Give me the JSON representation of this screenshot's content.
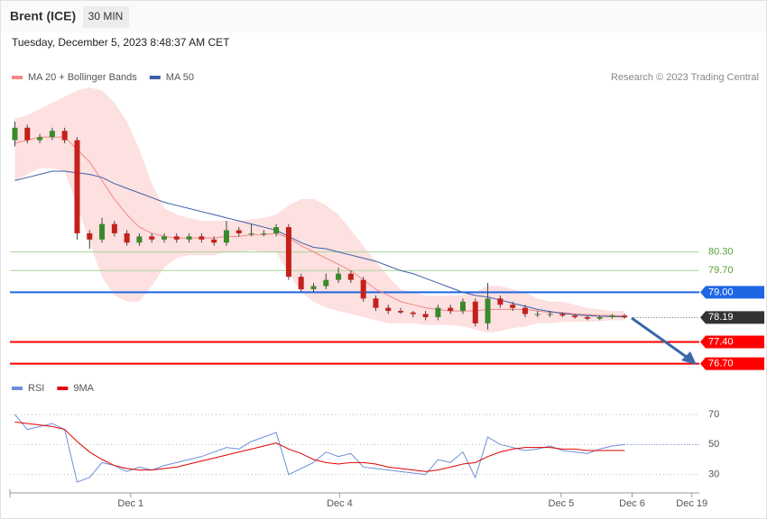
{
  "header": {
    "symbol": "Brent (ICE)",
    "interval": "30 MIN",
    "timestamp": "Tuesday, December 5, 2023 8:48:37 AM CET",
    "credit": "Research © 2023 Trading Central"
  },
  "chart_data": [
    {
      "type": "candlestick",
      "up_color": "#3a8a2c",
      "down_color": "#c3211a",
      "open": [
        83.9,
        84.3,
        83.9,
        84.0,
        84.2,
        83.9,
        80.9,
        80.7,
        81.2,
        80.9,
        80.6,
        80.8,
        80.7,
        80.8,
        80.7,
        80.8,
        80.7,
        80.6,
        81.0,
        80.9,
        80.9,
        80.9,
        81.1,
        79.5,
        79.1,
        79.2,
        79.4,
        79.6,
        79.4,
        78.8,
        78.5,
        78.4,
        78.35,
        78.3,
        78.2,
        78.5,
        78.4,
        78.7,
        78.0,
        78.8,
        78.6,
        78.5,
        78.3,
        78.3,
        78.3,
        78.25,
        78.2,
        78.15,
        78.2,
        78.25
      ],
      "high": [
        84.5,
        84.4,
        84.1,
        84.3,
        84.3,
        84.0,
        81.0,
        81.4,
        81.3,
        81.0,
        80.9,
        80.9,
        80.9,
        80.9,
        80.9,
        80.9,
        80.8,
        81.3,
        81.1,
        81.2,
        81.0,
        81.2,
        81.2,
        79.6,
        79.3,
        79.6,
        79.8,
        79.7,
        79.5,
        78.9,
        78.6,
        78.5,
        78.4,
        78.4,
        78.6,
        78.6,
        78.8,
        78.8,
        79.3,
        78.9,
        78.7,
        78.6,
        78.4,
        78.4,
        78.35,
        78.3,
        78.25,
        78.25,
        78.3,
        78.3
      ],
      "low": [
        83.7,
        83.8,
        83.8,
        83.9,
        83.8,
        80.7,
        80.4,
        80.6,
        80.8,
        80.5,
        80.5,
        80.6,
        80.6,
        80.6,
        80.6,
        80.6,
        80.5,
        80.5,
        80.8,
        80.8,
        80.8,
        80.8,
        79.4,
        79.0,
        79.0,
        79.1,
        79.3,
        79.3,
        78.7,
        78.4,
        78.3,
        78.3,
        78.2,
        78.1,
        78.1,
        78.3,
        78.3,
        77.9,
        77.8,
        78.5,
        78.4,
        78.2,
        78.2,
        78.2,
        78.2,
        78.15,
        78.1,
        78.1,
        78.15,
        78.15
      ],
      "close": [
        84.3,
        83.9,
        84.0,
        84.2,
        83.9,
        80.9,
        80.7,
        81.2,
        80.9,
        80.6,
        80.8,
        80.7,
        80.8,
        80.7,
        80.8,
        80.7,
        80.6,
        81.0,
        80.9,
        80.9,
        80.9,
        81.1,
        79.5,
        79.1,
        79.2,
        79.4,
        79.6,
        79.4,
        78.8,
        78.5,
        78.4,
        78.35,
        78.3,
        78.2,
        78.5,
        78.4,
        78.7,
        78.0,
        78.8,
        78.6,
        78.5,
        78.3,
        78.3,
        78.3,
        78.25,
        78.2,
        78.15,
        78.2,
        78.25,
        78.19
      ],
      "series": [
        {
          "name": "MA 20 + Bollinger Bands",
          "color": "#f08a84",
          "band_color": "#fde0e0",
          "values": [
            83.8,
            83.9,
            84.0,
            84.0,
            84.0,
            83.6,
            83.2,
            82.6,
            82.0,
            81.5,
            81.1,
            80.9,
            80.8,
            80.75,
            80.75,
            80.75,
            80.75,
            80.8,
            80.8,
            80.85,
            80.85,
            80.9,
            80.75,
            80.5,
            80.3,
            80.1,
            79.9,
            79.7,
            79.4,
            79.1,
            78.9,
            78.7,
            78.6,
            78.5,
            78.45,
            78.4,
            78.4,
            78.4,
            78.45,
            78.45,
            78.45,
            78.45,
            78.4,
            78.35,
            78.35,
            78.3,
            78.28,
            78.26,
            78.25,
            78.24
          ],
          "upper": [
            84.6,
            84.7,
            84.9,
            85.1,
            85.3,
            85.5,
            85.6,
            85.5,
            85.1,
            84.5,
            83.6,
            82.5,
            81.7,
            81.5,
            81.4,
            81.3,
            81.3,
            81.3,
            81.3,
            81.35,
            81.4,
            81.5,
            81.8,
            82.0,
            82.0,
            81.8,
            81.5,
            81.0,
            80.5,
            80.0,
            79.5,
            79.1,
            79.0,
            78.9,
            78.9,
            78.9,
            78.9,
            79.0,
            79.2,
            79.2,
            79.1,
            79.0,
            78.8,
            78.7,
            78.7,
            78.6,
            78.5,
            78.45,
            78.4,
            78.4
          ],
          "lower": [
            82.6,
            82.8,
            83.0,
            83.0,
            82.9,
            81.8,
            80.6,
            79.5,
            78.9,
            78.7,
            78.7,
            79.2,
            79.8,
            80.1,
            80.2,
            80.2,
            80.2,
            80.3,
            80.3,
            80.35,
            80.3,
            80.3,
            79.6,
            79.0,
            78.7,
            78.5,
            78.4,
            78.3,
            78.2,
            78.1,
            78.0,
            78.0,
            78.0,
            77.95,
            77.95,
            77.95,
            77.9,
            77.8,
            77.7,
            77.75,
            77.85,
            77.9,
            78.0,
            78.0,
            78.05,
            78.05,
            78.05,
            78.07,
            78.1,
            78.1
          ]
        },
        {
          "name": "MA 50",
          "color": "#3d5fa8",
          "values": [
            82.6,
            82.7,
            82.8,
            82.9,
            82.9,
            82.85,
            82.8,
            82.7,
            82.5,
            82.35,
            82.2,
            82.05,
            81.9,
            81.8,
            81.7,
            81.6,
            81.5,
            81.4,
            81.3,
            81.2,
            81.1,
            81.0,
            80.8,
            80.6,
            80.45,
            80.4,
            80.3,
            80.2,
            80.1,
            80.0,
            79.85,
            79.7,
            79.6,
            79.45,
            79.3,
            79.15,
            79.0,
            78.9,
            78.85,
            78.75,
            78.65,
            78.55,
            78.45,
            78.38,
            78.32,
            78.28,
            78.25,
            78.23,
            78.22,
            78.21
          ]
        }
      ],
      "levels": [
        {
          "value": 80.3,
          "label": "80.30",
          "color": "#a8d59a",
          "text_color": "#5a9e3a",
          "tag": false
        },
        {
          "value": 79.7,
          "label": "79.70",
          "color": "#a8d59a",
          "text_color": "#5a9e3a",
          "tag": false
        },
        {
          "value": 79.0,
          "label": "79.00",
          "color": "#1f66e5",
          "text_color": "#ffffff",
          "tag": true
        },
        {
          "value": 78.19,
          "label": "78.19",
          "color": "#333333",
          "text_color": "#ffffff",
          "tag": true,
          "dotted": true
        },
        {
          "value": 77.4,
          "label": "77.40",
          "color": "#ff0000",
          "text_color": "#ffffff",
          "tag": true
        },
        {
          "value": 76.7,
          "label": "76.70",
          "color": "#ff0000",
          "text_color": "#ffffff",
          "tag": true
        }
      ],
      "xlim": [
        -0.4,
        55
      ],
      "ylim": [
        76.4,
        85.6
      ]
    },
    {
      "type": "line",
      "series": [
        {
          "name": "RSI",
          "color": "#6d8fd8",
          "values": [
            70,
            60,
            62,
            64,
            60,
            25,
            28,
            38,
            36,
            32,
            35,
            33,
            36,
            38,
            40,
            42,
            45,
            48,
            47,
            52,
            55,
            58,
            30,
            34,
            38,
            45,
            42,
            44,
            35,
            34,
            33,
            32,
            31,
            30,
            40,
            38,
            45,
            28,
            55,
            50,
            48,
            46,
            47,
            49,
            46,
            45,
            44,
            47,
            49,
            50
          ]
        },
        {
          "name": "9MA",
          "color": "#e00000",
          "values": [
            65,
            64,
            63,
            62,
            60,
            52,
            45,
            40,
            36,
            34,
            33,
            33,
            34,
            35,
            37,
            39,
            41,
            43,
            45,
            47,
            49,
            51,
            47,
            44,
            40,
            38,
            37,
            38,
            38,
            37,
            35,
            34,
            33,
            32,
            33,
            35,
            37,
            38,
            42,
            45,
            47,
            48,
            48,
            48,
            47,
            47,
            46,
            46,
            46,
            46
          ]
        }
      ],
      "xlim": [
        -0.4,
        55
      ],
      "ylim": [
        19,
        82
      ],
      "yticks": [
        70,
        50,
        30
      ],
      "grid": true,
      "xticks": [
        {
          "value": 9.3,
          "label": "Dec 1"
        },
        {
          "value": 26.1,
          "label": "Dec 4"
        },
        {
          "value": 43.9,
          "label": "Dec 5"
        },
        {
          "value": 49.6,
          "label": "Dec 6"
        },
        {
          "value": 54.4,
          "label": "Dec 19"
        }
      ]
    }
  ]
}
